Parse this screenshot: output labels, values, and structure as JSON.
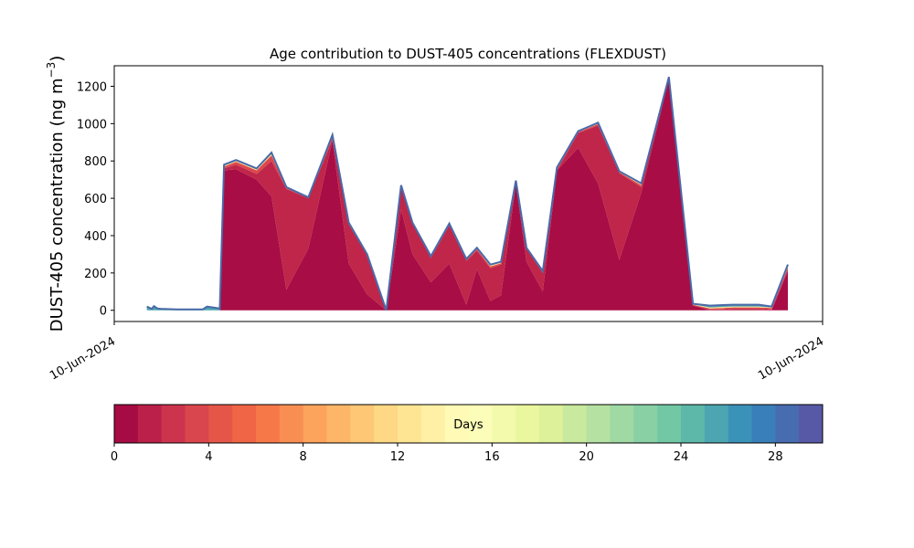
{
  "chart_data": {
    "type": "area",
    "title": "Age contribution to DUST-405 concentrations (FLEXDUST)",
    "ylabel_text": "DUST-405 concentration (ng m",
    "ylabel_unit_sup": "−3",
    "ylabel_close": ")",
    "xlabel": "",
    "x_tick_labels": [
      "10-Jun-2024",
      "10-Jun-2024"
    ],
    "ylim": [
      -60,
      1310
    ],
    "y_ticks": [
      0,
      200,
      400,
      600,
      800,
      1000,
      1200
    ],
    "grid": false,
    "colorbar": {
      "label": "Days",
      "range": [
        0,
        30
      ],
      "ticks": [
        0,
        4,
        8,
        12,
        16,
        20,
        24,
        28
      ],
      "n_bins": 30
    },
    "x_range": [
      0,
      100
    ],
    "x": [
      4.6,
      5.3,
      5.6,
      6.1,
      6.6,
      8.8,
      11.0,
      12.5,
      13.1,
      14.9,
      15.5,
      17.2,
      20.1,
      22.2,
      24.3,
      27.4,
      30.8,
      33.1,
      35.7,
      38.4,
      40.5,
      42.1,
      44.7,
      47.3,
      49.7,
      51.2,
      53.1,
      54.6,
      56.7,
      58.2,
      60.5,
      62.5,
      65.5,
      68.3,
      71.3,
      74.4,
      78.3,
      81.7,
      84.1,
      85.9,
      87.3,
      89.5,
      91.0,
      92.8,
      95.1
    ],
    "total": [
      20,
      8,
      22,
      10,
      8,
      5,
      5,
      5,
      20,
      10,
      780,
      805,
      760,
      845,
      660,
      605,
      940,
      470,
      300,
      0,
      670,
      470,
      290,
      465,
      275,
      335,
      245,
      260,
      695,
      335,
      210,
      765,
      960,
      1005,
      745,
      680,
      1250,
      35,
      25,
      28,
      30,
      30,
      30,
      20,
      245
    ],
    "series": [
      {
        "values": [
          0,
          0,
          0,
          0,
          0,
          0,
          0,
          0,
          0,
          0,
          750,
          755,
          700,
          610,
          110,
          330,
          910,
          250,
          85,
          0,
          540,
          300,
          150,
          250,
          30,
          220,
          50,
          80,
          680,
          260,
          100,
          750,
          870,
          680,
          270,
          630,
          1240,
          25,
          0,
          0,
          0,
          0,
          0,
          0,
          210
        ]
      },
      {
        "values": [
          0,
          0,
          0,
          0,
          0,
          0,
          0,
          0,
          0,
          0,
          760,
          780,
          730,
          800,
          650,
          600,
          915,
          460,
          295,
          0,
          655,
          465,
          280,
          455,
          265,
          320,
          225,
          245,
          685,
          330,
          200,
          750,
          950,
          990,
          735,
          660,
          1245,
          28,
          5,
          5,
          8,
          8,
          8,
          5,
          220
        ]
      },
      {
        "values": [
          0,
          0,
          0,
          0,
          0,
          0,
          0,
          0,
          0,
          0,
          770,
          795,
          750,
          830,
          655,
          603,
          930,
          465,
          298,
          0,
          662,
          468,
          285,
          460,
          270,
          328,
          235,
          252,
          690,
          333,
          205,
          758,
          955,
          998,
          740,
          670,
          1247,
          30,
          10,
          12,
          15,
          15,
          15,
          12,
          230
        ]
      },
      {
        "values": [
          0,
          0,
          0,
          0,
          0,
          0,
          0,
          0,
          0,
          0,
          775,
          800,
          755,
          838,
          658,
          604,
          935,
          467,
          299,
          0,
          666,
          469,
          287,
          462,
          272,
          331,
          240,
          256,
          692,
          334,
          207,
          761,
          958,
          1002,
          742,
          675,
          1248,
          32,
          15,
          18,
          20,
          20,
          20,
          15,
          238
        ]
      }
    ]
  }
}
